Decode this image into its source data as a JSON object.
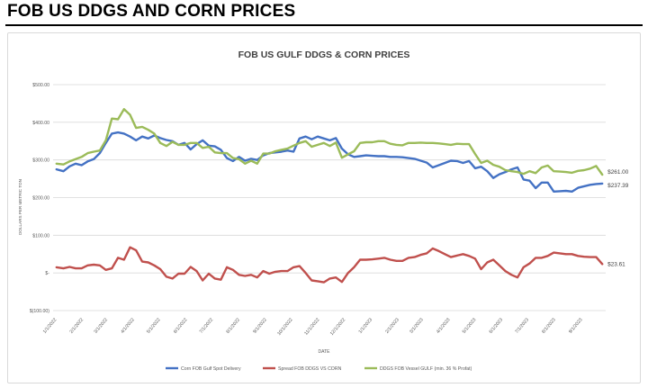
{
  "page_title": "FOB US DDGS AND CORN PRICES",
  "chart_data": {
    "type": "line",
    "title": "FOB US GULF DDGS & CORN PRICES",
    "xlabel": "DATE",
    "ylabel": "DOLLARS PER METRIC TON",
    "ylim": [
      -100,
      500
    ],
    "yticks": [
      -100,
      0,
      100,
      200,
      300,
      400,
      500
    ],
    "ytick_labels": [
      "$(100.00)",
      "$-",
      "$100.00",
      "$200.00",
      "$300.00",
      "$400.00",
      "$500.00"
    ],
    "xticks": [
      "1/1/2022",
      "2/1/2022",
      "3/1/2022",
      "4/1/2022",
      "5/1/2022",
      "6/1/2022",
      "7/1/2022",
      "8/1/2022",
      "9/1/2022",
      "10/1/2022",
      "11/1/2022",
      "12/1/2022",
      "1/1/2023",
      "2/1/2023",
      "3/1/2023",
      "4/1/2023",
      "5/1/2023",
      "6/1/2023",
      "7/1/2023",
      "8/1/2023",
      "9/1/2023"
    ],
    "grid": true,
    "legend_position": "bottom",
    "series": [
      {
        "name": "Corn FOB Gulf Spot Delivery",
        "color": "#4472c4",
        "end_label": "$237.39",
        "points": [
          [
            "2022-01-01",
            275
          ],
          [
            "2022-01-09",
            270
          ],
          [
            "2022-01-16",
            283
          ],
          [
            "2022-01-23",
            290
          ],
          [
            "2022-01-30",
            286
          ],
          [
            "2022-02-06",
            296
          ],
          [
            "2022-02-13",
            302
          ],
          [
            "2022-02-20",
            318
          ],
          [
            "2022-02-27",
            345
          ],
          [
            "2022-03-06",
            370
          ],
          [
            "2022-03-13",
            373
          ],
          [
            "2022-03-20",
            370
          ],
          [
            "2022-03-27",
            362
          ],
          [
            "2022-04-03",
            352
          ],
          [
            "2022-04-10",
            362
          ],
          [
            "2022-04-17",
            357
          ],
          [
            "2022-04-24",
            365
          ],
          [
            "2022-05-01",
            358
          ],
          [
            "2022-05-08",
            353
          ],
          [
            "2022-05-15",
            350
          ],
          [
            "2022-05-22",
            340
          ],
          [
            "2022-05-29",
            345
          ],
          [
            "2022-06-05",
            328
          ],
          [
            "2022-06-12",
            342
          ],
          [
            "2022-06-19",
            352
          ],
          [
            "2022-06-26",
            338
          ],
          [
            "2022-07-03",
            336
          ],
          [
            "2022-07-10",
            327
          ],
          [
            "2022-07-17",
            305
          ],
          [
            "2022-07-24",
            297
          ],
          [
            "2022-07-31",
            308
          ],
          [
            "2022-08-07",
            298
          ],
          [
            "2022-08-14",
            303
          ],
          [
            "2022-08-21",
            300
          ],
          [
            "2022-08-28",
            312
          ],
          [
            "2022-09-04",
            318
          ],
          [
            "2022-09-11",
            320
          ],
          [
            "2022-09-18",
            322
          ],
          [
            "2022-09-25",
            325
          ],
          [
            "2022-10-02",
            322
          ],
          [
            "2022-10-09",
            357
          ],
          [
            "2022-10-16",
            362
          ],
          [
            "2022-10-23",
            355
          ],
          [
            "2022-10-30",
            362
          ],
          [
            "2022-11-06",
            357
          ],
          [
            "2022-11-13",
            352
          ],
          [
            "2022-11-20",
            358
          ],
          [
            "2022-11-27",
            330
          ],
          [
            "2022-12-04",
            315
          ],
          [
            "2022-12-11",
            308
          ],
          [
            "2022-12-18",
            310
          ],
          [
            "2022-12-25",
            312
          ],
          [
            "2023-01-01",
            311
          ],
          [
            "2023-01-08",
            310
          ],
          [
            "2023-01-15",
            310
          ],
          [
            "2023-01-22",
            308
          ],
          [
            "2023-01-29",
            308
          ],
          [
            "2023-02-05",
            307
          ],
          [
            "2023-02-12",
            305
          ],
          [
            "2023-02-19",
            303
          ],
          [
            "2023-02-26",
            298
          ],
          [
            "2023-03-05",
            293
          ],
          [
            "2023-03-12",
            280
          ],
          [
            "2023-03-19",
            286
          ],
          [
            "2023-03-26",
            292
          ],
          [
            "2023-04-02",
            298
          ],
          [
            "2023-04-09",
            297
          ],
          [
            "2023-04-16",
            292
          ],
          [
            "2023-04-23",
            297
          ],
          [
            "2023-04-30",
            278
          ],
          [
            "2023-05-07",
            282
          ],
          [
            "2023-05-14",
            270
          ],
          [
            "2023-05-21",
            252
          ],
          [
            "2023-05-28",
            262
          ],
          [
            "2023-06-04",
            268
          ],
          [
            "2023-06-11",
            275
          ],
          [
            "2023-06-18",
            280
          ],
          [
            "2023-06-25",
            248
          ],
          [
            "2023-07-02",
            245
          ],
          [
            "2023-07-09",
            225
          ],
          [
            "2023-07-16",
            240
          ],
          [
            "2023-07-23",
            240
          ],
          [
            "2023-07-30",
            216
          ],
          [
            "2023-08-06",
            217
          ],
          [
            "2023-08-13",
            218
          ],
          [
            "2023-08-20",
            216
          ],
          [
            "2023-08-27",
            226
          ],
          [
            "2023-09-03",
            230
          ],
          [
            "2023-09-10",
            234
          ],
          [
            "2023-09-17",
            236
          ],
          [
            "2023-09-24",
            237.39
          ]
        ]
      },
      {
        "name": "Spread FOB DDGS VS CORN",
        "color": "#c0504d",
        "end_label": "$23.61",
        "points": [
          [
            "2022-01-01",
            15
          ],
          [
            "2022-01-09",
            12
          ],
          [
            "2022-01-16",
            16
          ],
          [
            "2022-01-23",
            12
          ],
          [
            "2022-01-30",
            12
          ],
          [
            "2022-02-06",
            20
          ],
          [
            "2022-02-13",
            22
          ],
          [
            "2022-02-20",
            20
          ],
          [
            "2022-02-27",
            8
          ],
          [
            "2022-03-06",
            12
          ],
          [
            "2022-03-13",
            40
          ],
          [
            "2022-03-20",
            35
          ],
          [
            "2022-03-27",
            68
          ],
          [
            "2022-04-03",
            60
          ],
          [
            "2022-04-10",
            30
          ],
          [
            "2022-04-17",
            28
          ],
          [
            "2022-04-24",
            20
          ],
          [
            "2022-05-01",
            10
          ],
          [
            "2022-05-08",
            -10
          ],
          [
            "2022-05-15",
            -15
          ],
          [
            "2022-05-22",
            -2
          ],
          [
            "2022-05-29",
            -2
          ],
          [
            "2022-06-05",
            16
          ],
          [
            "2022-06-12",
            5
          ],
          [
            "2022-06-19",
            -20
          ],
          [
            "2022-06-26",
            -2
          ],
          [
            "2022-07-03",
            -15
          ],
          [
            "2022-07-10",
            -18
          ],
          [
            "2022-07-17",
            15
          ],
          [
            "2022-07-24",
            8
          ],
          [
            "2022-07-31",
            -5
          ],
          [
            "2022-08-07",
            -8
          ],
          [
            "2022-08-14",
            -5
          ],
          [
            "2022-08-21",
            -12
          ],
          [
            "2022-08-28",
            5
          ],
          [
            "2022-09-04",
            -2
          ],
          [
            "2022-09-11",
            3
          ],
          [
            "2022-09-18",
            5
          ],
          [
            "2022-09-25",
            5
          ],
          [
            "2022-10-02",
            15
          ],
          [
            "2022-10-09",
            18
          ],
          [
            "2022-10-16",
            0
          ],
          [
            "2022-10-23",
            -20
          ],
          [
            "2022-10-30",
            -22
          ],
          [
            "2022-11-06",
            -25
          ],
          [
            "2022-11-13",
            -15
          ],
          [
            "2022-11-20",
            -12
          ],
          [
            "2022-11-27",
            -24
          ],
          [
            "2022-12-04",
            0
          ],
          [
            "2022-12-11",
            15
          ],
          [
            "2022-12-18",
            35
          ],
          [
            "2022-12-25",
            35
          ],
          [
            "2023-01-01",
            36
          ],
          [
            "2023-01-08",
            38
          ],
          [
            "2023-01-15",
            40
          ],
          [
            "2023-01-22",
            35
          ],
          [
            "2023-01-29",
            32
          ],
          [
            "2023-02-05",
            32
          ],
          [
            "2023-02-12",
            40
          ],
          [
            "2023-02-19",
            42
          ],
          [
            "2023-02-26",
            48
          ],
          [
            "2023-03-05",
            52
          ],
          [
            "2023-03-12",
            65
          ],
          [
            "2023-03-19",
            58
          ],
          [
            "2023-03-26",
            50
          ],
          [
            "2023-04-02",
            42
          ],
          [
            "2023-04-09",
            46
          ],
          [
            "2023-04-16",
            50
          ],
          [
            "2023-04-23",
            45
          ],
          [
            "2023-04-30",
            38
          ],
          [
            "2023-05-07",
            10
          ],
          [
            "2023-05-14",
            28
          ],
          [
            "2023-05-21",
            35
          ],
          [
            "2023-05-28",
            20
          ],
          [
            "2023-06-04",
            5
          ],
          [
            "2023-06-11",
            -5
          ],
          [
            "2023-06-18",
            -12
          ],
          [
            "2023-06-25",
            15
          ],
          [
            "2023-07-02",
            25
          ],
          [
            "2023-07-09",
            40
          ],
          [
            "2023-07-16",
            40
          ],
          [
            "2023-07-23",
            45
          ],
          [
            "2023-07-30",
            54
          ],
          [
            "2023-08-06",
            52
          ],
          [
            "2023-08-13",
            50
          ],
          [
            "2023-08-20",
            50
          ],
          [
            "2023-08-27",
            45
          ],
          [
            "2023-09-03",
            43
          ],
          [
            "2023-09-10",
            42
          ],
          [
            "2023-09-17",
            42
          ],
          [
            "2023-09-24",
            23.61
          ]
        ]
      },
      {
        "name": "DDGS FOB Vessel GULF  (min. 36 % Profat)",
        "color": "#9bbb59",
        "end_label": "$261.00",
        "points": [
          [
            "2022-01-01",
            290
          ],
          [
            "2022-01-09",
            288
          ],
          [
            "2022-01-16",
            296
          ],
          [
            "2022-01-23",
            302
          ],
          [
            "2022-01-30",
            308
          ],
          [
            "2022-02-06",
            318
          ],
          [
            "2022-02-13",
            322
          ],
          [
            "2022-02-20",
            325
          ],
          [
            "2022-02-27",
            352
          ],
          [
            "2022-03-06",
            410
          ],
          [
            "2022-03-13",
            408
          ],
          [
            "2022-03-20",
            435
          ],
          [
            "2022-03-27",
            420
          ],
          [
            "2022-04-03",
            385
          ],
          [
            "2022-04-10",
            388
          ],
          [
            "2022-04-17",
            380
          ],
          [
            "2022-04-24",
            370
          ],
          [
            "2022-05-01",
            345
          ],
          [
            "2022-05-08",
            337
          ],
          [
            "2022-05-15",
            348
          ],
          [
            "2022-05-22",
            340
          ],
          [
            "2022-05-29",
            340
          ],
          [
            "2022-06-05",
            345
          ],
          [
            "2022-06-12",
            345
          ],
          [
            "2022-06-19",
            332
          ],
          [
            "2022-06-26",
            335
          ],
          [
            "2022-07-03",
            320
          ],
          [
            "2022-07-10",
            318
          ],
          [
            "2022-07-17",
            318
          ],
          [
            "2022-07-24",
            305
          ],
          [
            "2022-07-31",
            302
          ],
          [
            "2022-08-07",
            290
          ],
          [
            "2022-08-14",
            298
          ],
          [
            "2022-08-21",
            290
          ],
          [
            "2022-08-28",
            317
          ],
          [
            "2022-09-04",
            317
          ],
          [
            "2022-09-11",
            323
          ],
          [
            "2022-09-18",
            327
          ],
          [
            "2022-09-25",
            330
          ],
          [
            "2022-10-02",
            338
          ],
          [
            "2022-10-09",
            345
          ],
          [
            "2022-10-16",
            350
          ],
          [
            "2022-10-23",
            335
          ],
          [
            "2022-10-30",
            340
          ],
          [
            "2022-11-06",
            345
          ],
          [
            "2022-11-13",
            337
          ],
          [
            "2022-11-20",
            346
          ],
          [
            "2022-11-27",
            306
          ],
          [
            "2022-12-04",
            315
          ],
          [
            "2022-12-11",
            323
          ],
          [
            "2022-12-18",
            345
          ],
          [
            "2022-12-25",
            347
          ],
          [
            "2023-01-01",
            347
          ],
          [
            "2023-01-08",
            350
          ],
          [
            "2023-01-15",
            350
          ],
          [
            "2023-01-22",
            343
          ],
          [
            "2023-01-29",
            340
          ],
          [
            "2023-02-05",
            339
          ],
          [
            "2023-02-12",
            345
          ],
          [
            "2023-02-19",
            345
          ],
          [
            "2023-02-26",
            346
          ],
          [
            "2023-03-05",
            345
          ],
          [
            "2023-03-12",
            345
          ],
          [
            "2023-03-19",
            344
          ],
          [
            "2023-03-26",
            342
          ],
          [
            "2023-04-02",
            340
          ],
          [
            "2023-04-09",
            343
          ],
          [
            "2023-04-16",
            342
          ],
          [
            "2023-04-23",
            342
          ],
          [
            "2023-04-30",
            316
          ],
          [
            "2023-05-07",
            292
          ],
          [
            "2023-05-14",
            298
          ],
          [
            "2023-05-21",
            287
          ],
          [
            "2023-05-28",
            282
          ],
          [
            "2023-06-04",
            273
          ],
          [
            "2023-06-11",
            270
          ],
          [
            "2023-06-18",
            268
          ],
          [
            "2023-06-25",
            263
          ],
          [
            "2023-07-02",
            270
          ],
          [
            "2023-07-09",
            265
          ],
          [
            "2023-07-16",
            280
          ],
          [
            "2023-07-23",
            285
          ],
          [
            "2023-07-30",
            270
          ],
          [
            "2023-08-06",
            269
          ],
          [
            "2023-08-13",
            268
          ],
          [
            "2023-08-20",
            266
          ],
          [
            "2023-08-27",
            271
          ],
          [
            "2023-09-03",
            273
          ],
          [
            "2023-09-10",
            277
          ],
          [
            "2023-09-17",
            284
          ],
          [
            "2023-09-24",
            261
          ]
        ]
      }
    ]
  }
}
